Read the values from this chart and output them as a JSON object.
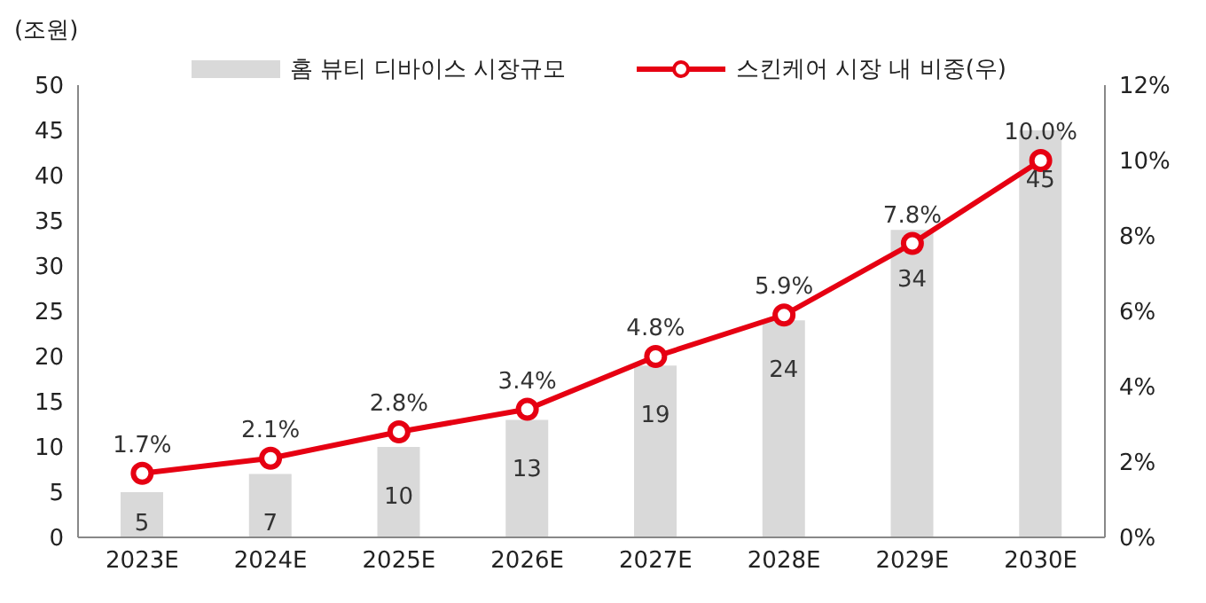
{
  "chart_data": {
    "type": "bar",
    "ylabel": "(조원)",
    "categories": [
      "2023E",
      "2024E",
      "2025E",
      "2026E",
      "2027E",
      "2028E",
      "2029E",
      "2030E"
    ],
    "series": [
      {
        "name": "홈 뷰티 디바이스 시장규모",
        "color": "#d9d9d9",
        "values": [
          5,
          7,
          10,
          13,
          19,
          24,
          34,
          45
        ],
        "value_labels": [
          "5",
          "7",
          "10",
          "13",
          "19",
          "24",
          "34",
          "45"
        ]
      },
      {
        "name": "스킨케어 시장 내 비중(우)",
        "type": "line",
        "axis": "y2",
        "color": "#e60012",
        "values": [
          1.7,
          2.1,
          2.8,
          3.4,
          4.8,
          5.9,
          7.8,
          10.0
        ],
        "value_labels": [
          "1.7%",
          "2.1%",
          "2.8%",
          "3.4%",
          "4.8%",
          "5.9%",
          "7.8%",
          "10.0%"
        ]
      }
    ],
    "ylim": [
      0,
      50
    ],
    "yticks": [
      0,
      5,
      10,
      15,
      20,
      25,
      30,
      35,
      40,
      45,
      50
    ],
    "y2lim": [
      0,
      12
    ],
    "y2ticks": [
      {
        "value": 0,
        "label": "0%"
      },
      {
        "value": 2,
        "label": "2%"
      },
      {
        "value": 4,
        "label": "4%"
      },
      {
        "value": 6,
        "label": "6%"
      },
      {
        "value": 8,
        "label": "8%"
      },
      {
        "value": 10,
        "label": "10%"
      },
      {
        "value": 12,
        "label": "12%"
      }
    ],
    "legend": "top",
    "grid": false,
    "marker": "circle",
    "line_style": "solid"
  }
}
